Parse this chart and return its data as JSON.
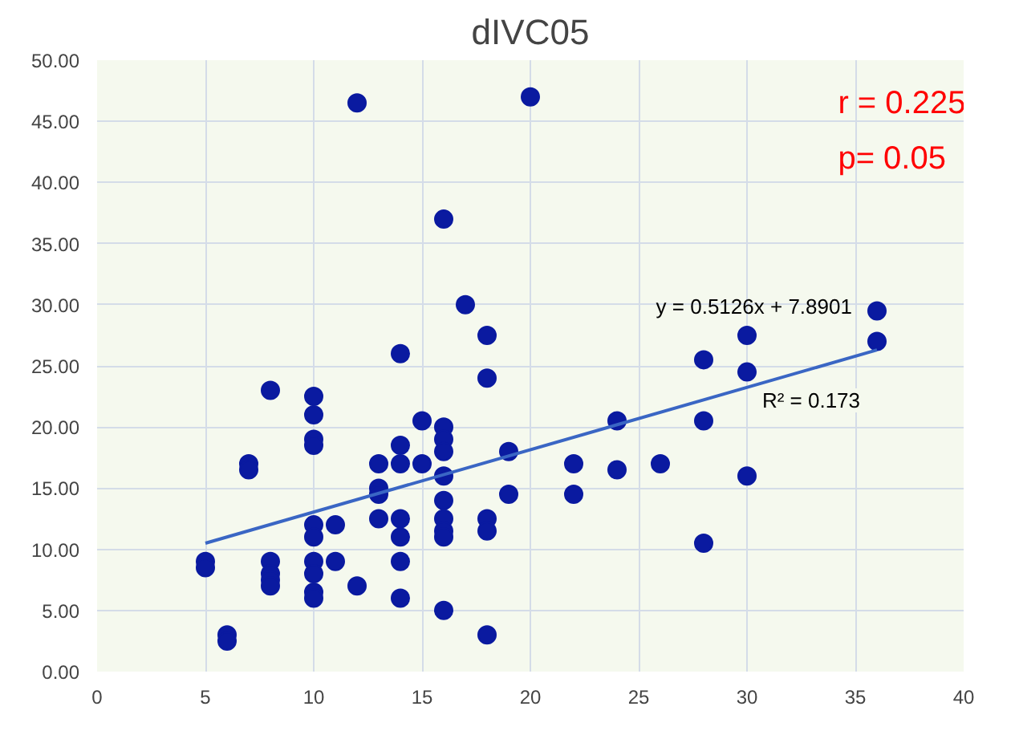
{
  "chart_data": {
    "type": "scatter",
    "title": "dIVC05",
    "xlim": [
      0,
      40
    ],
    "ylim": [
      0,
      50
    ],
    "xticks": [
      0,
      5,
      10,
      15,
      20,
      25,
      30,
      35,
      40
    ],
    "yticks": [
      {
        "value": 0,
        "label": "0.00"
      },
      {
        "value": 5,
        "label": "5.00"
      },
      {
        "value": 10,
        "label": "10.00"
      },
      {
        "value": 15,
        "label": "15.00"
      },
      {
        "value": 20,
        "label": "20.00"
      },
      {
        "value": 25,
        "label": "25.00"
      },
      {
        "value": 30,
        "label": "30.00"
      },
      {
        "value": 35,
        "label": "35.00"
      },
      {
        "value": 40,
        "label": "40.00"
      },
      {
        "value": 45,
        "label": "45.00"
      },
      {
        "value": 50,
        "label": "50.00"
      }
    ],
    "grid": true,
    "series": [
      {
        "marker": "circle",
        "color": "#0a1aa0",
        "x": [
          5,
          5,
          6,
          6,
          7,
          7,
          8,
          8,
          8,
          8,
          8,
          10,
          10,
          10,
          10,
          10,
          10,
          10,
          10,
          10,
          10,
          11,
          11,
          12,
          12,
          13,
          13,
          13,
          13,
          14,
          14,
          14,
          14,
          14,
          14,
          14,
          15,
          15,
          16,
          16,
          16,
          16,
          16,
          16,
          16,
          16,
          16,
          16,
          17,
          18,
          18,
          18,
          18,
          18,
          19,
          19,
          20,
          22,
          22,
          24,
          24,
          26,
          28,
          28,
          28,
          30,
          30,
          30,
          36,
          36
        ],
        "values": [
          9,
          8.5,
          3,
          2.5,
          17,
          16.5,
          23,
          9,
          8,
          7.5,
          7,
          22.5,
          21,
          19,
          18.5,
          12,
          11,
          9,
          8,
          6.5,
          6,
          12,
          9,
          46.5,
          7,
          17,
          15,
          14.5,
          12.5,
          26,
          18.5,
          17,
          12.5,
          11,
          9,
          6,
          20.5,
          17,
          37,
          20,
          19,
          18,
          16,
          14,
          12.5,
          11.5,
          11,
          5,
          30,
          27.5,
          24,
          12.5,
          11.5,
          3,
          18,
          14.5,
          47,
          17,
          14.5,
          20.5,
          16.5,
          17,
          25.5,
          20.5,
          10.5,
          27.5,
          24.5,
          16,
          29.5,
          27
        ]
      },
      {
        "type": "line",
        "color": "#3a66c4",
        "x": [
          5,
          36
        ],
        "values": [
          10.5,
          26.3
        ],
        "line_style": "solid",
        "marker": "none"
      }
    ],
    "annotations": [
      "y = 0.5126x + 7.8901",
      "R² = 0.173",
      "r = 0.225",
      "p= 0.05"
    ]
  }
}
